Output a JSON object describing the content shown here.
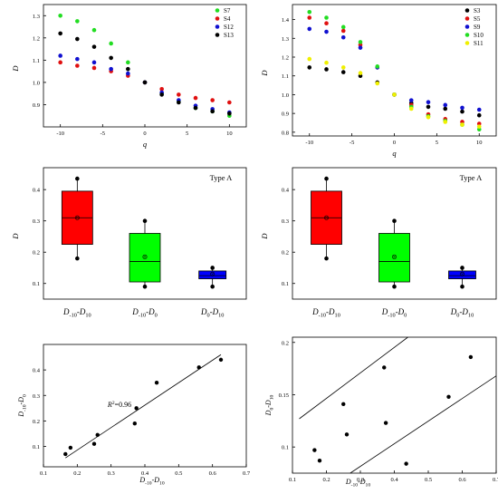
{
  "chart_data": [
    {
      "id": "p1",
      "type": "scatter",
      "xlabel": "q",
      "ylabel": "D",
      "xlim": [
        -12,
        12
      ],
      "ylim": [
        0.8,
        1.35
      ],
      "xticks": [
        -10,
        -5,
        0,
        5,
        10
      ],
      "yticks": [
        0.9,
        1.0,
        1.1,
        1.2,
        1.3
      ],
      "legend_position": "top-right",
      "x": [
        -10,
        -8,
        -6,
        -4,
        -2,
        0,
        2,
        4,
        6,
        8,
        10
      ],
      "series": [
        {
          "name": "S7",
          "color": "#22dd22",
          "values": [
            1.3,
            1.275,
            1.235,
            1.175,
            1.09,
            1.0,
            0.95,
            0.915,
            0.885,
            0.87,
            0.85
          ]
        },
        {
          "name": "S4",
          "color": "#e01010",
          "values": [
            1.09,
            1.075,
            1.065,
            1.05,
            1.03,
            1.0,
            0.97,
            0.945,
            0.93,
            0.92,
            0.91
          ]
        },
        {
          "name": "S12",
          "color": "#1010d0",
          "values": [
            1.12,
            1.105,
            1.09,
            1.06,
            1.04,
            1.0,
            0.955,
            0.92,
            0.895,
            0.88,
            0.865
          ]
        },
        {
          "name": "S13",
          "color": "#000000",
          "values": [
            1.22,
            1.195,
            1.16,
            1.11,
            1.06,
            1.0,
            0.945,
            0.91,
            0.885,
            0.87,
            0.86
          ]
        }
      ]
    },
    {
      "id": "p2",
      "type": "scatter",
      "xlabel": "q",
      "ylabel": "D",
      "xlim": [
        -12,
        12
      ],
      "ylim": [
        0.78,
        1.48
      ],
      "xticks": [
        -10,
        -5,
        0,
        5,
        10
      ],
      "yticks": [
        0.8,
        0.9,
        1.0,
        1.1,
        1.2,
        1.3,
        1.4
      ],
      "legend_position": "top-right",
      "x": [
        -10,
        -8,
        -6,
        -4,
        -2,
        0,
        2,
        4,
        6,
        8,
        10
      ],
      "series": [
        {
          "name": "S3",
          "color": "#000000",
          "values": [
            1.145,
            1.135,
            1.12,
            1.1,
            1.065,
            1.0,
            0.955,
            0.935,
            0.925,
            0.91,
            0.89
          ]
        },
        {
          "name": "S5",
          "color": "#e01010",
          "values": [
            1.41,
            1.38,
            1.34,
            1.265,
            1.145,
            1.0,
            0.945,
            0.895,
            0.87,
            0.855,
            0.845
          ]
        },
        {
          "name": "S9",
          "color": "#1010d0",
          "values": [
            1.35,
            1.335,
            1.305,
            1.25,
            1.145,
            1.0,
            0.97,
            0.96,
            0.945,
            0.93,
            0.92
          ]
        },
        {
          "name": "S10",
          "color": "#22dd22",
          "values": [
            1.44,
            1.41,
            1.36,
            1.28,
            1.15,
            1.0,
            0.935,
            0.885,
            0.86,
            0.84,
            0.815
          ]
        },
        {
          "name": "S11",
          "color": "#f0f000",
          "values": [
            1.19,
            1.17,
            1.145,
            1.115,
            1.06,
            1.0,
            0.925,
            0.88,
            0.855,
            0.84,
            0.83
          ]
        }
      ]
    },
    {
      "id": "p3",
      "type": "box",
      "ylabel": "D",
      "ylim": [
        0.05,
        0.47
      ],
      "yticks": [
        0.1,
        0.2,
        0.3,
        0.4
      ],
      "annotation": "Type A",
      "categories": [
        {
          "main": "D",
          "sub": "-10",
          "mid": "-",
          "main2": "D",
          "sub2": "10"
        },
        {
          "main": "D",
          "sub": "-10",
          "mid": "-",
          "main2": "D",
          "sub2": "0"
        },
        {
          "main": "D",
          "sub": "0",
          "mid": "-",
          "main2": "D",
          "sub2": "10"
        }
      ],
      "boxes": [
        {
          "color": "#ff0000",
          "min": 0.18,
          "q1": 0.225,
          "median": 0.31,
          "mean": 0.31,
          "q3": 0.395,
          "max": 0.435
        },
        {
          "color": "#00ff00",
          "min": 0.09,
          "q1": 0.105,
          "median": 0.17,
          "mean": 0.185,
          "q3": 0.26,
          "max": 0.3
        },
        {
          "color": "#0000ff",
          "min": 0.09,
          "q1": 0.115,
          "median": 0.125,
          "mean": 0.13,
          "q3": 0.14,
          "max": 0.15
        }
      ]
    },
    {
      "id": "p4",
      "type": "box",
      "ylabel": "D",
      "ylim": [
        0.05,
        0.47
      ],
      "yticks": [
        0.1,
        0.2,
        0.3,
        0.4
      ],
      "annotation": "Type A",
      "categories": [
        {
          "main": "D",
          "sub": "-10",
          "mid": "-",
          "main2": "D",
          "sub2": "10"
        },
        {
          "main": "D",
          "sub": "-10",
          "mid": "-",
          "main2": "D",
          "sub2": "0"
        },
        {
          "main": "D",
          "sub": "0",
          "mid": "-",
          "main2": "D",
          "sub2": "10"
        }
      ],
      "boxes": [
        {
          "color": "#ff0000",
          "min": 0.18,
          "q1": 0.225,
          "median": 0.31,
          "mean": 0.31,
          "q3": 0.395,
          "max": 0.435
        },
        {
          "color": "#00ff00",
          "min": 0.09,
          "q1": 0.105,
          "median": 0.17,
          "mean": 0.185,
          "q3": 0.26,
          "max": 0.3
        },
        {
          "color": "#0000ff",
          "min": 0.09,
          "q1": 0.115,
          "median": 0.125,
          "mean": 0.13,
          "q3": 0.14,
          "max": 0.15
        }
      ]
    },
    {
      "id": "p5",
      "type": "scatter",
      "xlabel": {
        "main": "D",
        "sub": "-10",
        "mid": "-",
        "main2": "D",
        "sub2": "10"
      },
      "ylabel": {
        "main": "D",
        "sub": "-10",
        "mid": "-",
        "main2": "D",
        "sub2": "0"
      },
      "xlim": [
        0.1,
        0.7
      ],
      "ylim": [
        0.02,
        0.5
      ],
      "xticks": [
        0.1,
        0.2,
        0.3,
        0.4,
        0.5,
        0.6,
        0.7
      ],
      "yticks": [
        0.1,
        0.2,
        0.3,
        0.4
      ],
      "annotation": {
        "main": "R",
        "sup": "2",
        "rest": "=0.96"
      },
      "points": [
        [
          0.165,
          0.07
        ],
        [
          0.18,
          0.095
        ],
        [
          0.25,
          0.11
        ],
        [
          0.26,
          0.145
        ],
        [
          0.37,
          0.19
        ],
        [
          0.375,
          0.25
        ],
        [
          0.435,
          0.35
        ],
        [
          0.56,
          0.41
        ],
        [
          0.625,
          0.44
        ]
      ],
      "fit_line": [
        [
          0.165,
          0.055
        ],
        [
          0.625,
          0.46
        ]
      ]
    },
    {
      "id": "p6",
      "type": "scatter",
      "xlabel": {
        "main": "D",
        "sub": "-10",
        "mid": "-",
        "main2": "D",
        "sub2": "10"
      },
      "ylabel": {
        "main": "D",
        "sub": "0",
        "mid": "-",
        "main2": "D",
        "sub2": "10"
      },
      "xlim": [
        0.1,
        0.7
      ],
      "ylim": [
        0.075,
        0.205
      ],
      "xticks": [
        0.1,
        0.2,
        0.3,
        0.4,
        0.5,
        0.6,
        0.7
      ],
      "yticks": [
        0.1,
        0.15,
        0.2
      ],
      "points": [
        [
          0.165,
          0.097
        ],
        [
          0.18,
          0.087
        ],
        [
          0.25,
          0.141
        ],
        [
          0.26,
          0.112
        ],
        [
          0.37,
          0.176
        ],
        [
          0.375,
          0.123
        ],
        [
          0.435,
          0.084
        ],
        [
          0.56,
          0.148
        ],
        [
          0.625,
          0.186
        ]
      ],
      "bound_lines": [
        [
          [
            0.12,
            0.127
          ],
          [
            0.44,
            0.205
          ]
        ],
        [
          [
            0.27,
            0.075
          ],
          [
            0.7,
            0.168
          ]
        ]
      ]
    }
  ]
}
